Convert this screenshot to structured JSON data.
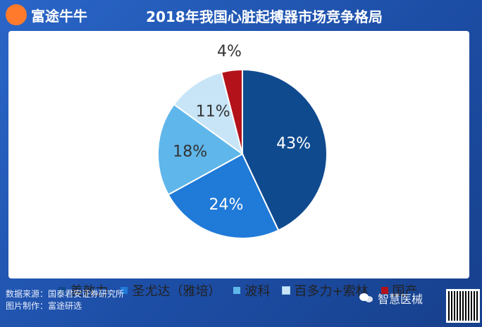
{
  "header": {
    "brand": "富途牛牛",
    "title": "2018年我国心脏起搏器市场竞争格局"
  },
  "colors": {
    "background": "#1f4fa3",
    "brand_orange": "#ff7a2b"
  },
  "chart_data": {
    "type": "pie",
    "title": "2018年我国心脏起搏器市场竞争格局",
    "legend_position": "bottom",
    "slices": [
      {
        "label": "美敦力",
        "value": 43,
        "display": "43%",
        "color": "#0f4a8f"
      },
      {
        "label": "圣尤达（雅培）",
        "value": 24,
        "display": "24%",
        "color": "#1f7ad8"
      },
      {
        "label": "波科",
        "value": 18,
        "display": "18%",
        "color": "#5fb6ea"
      },
      {
        "label": "百多力+索林",
        "value": 11,
        "display": "11%",
        "color": "#c8e5f8"
      },
      {
        "label": "国产",
        "value": 4,
        "display": "4%",
        "color": "#b3121b"
      }
    ]
  },
  "footer": {
    "source": "数据来源：国泰君安证券研究所",
    "made_by": "图片制作：富途研选"
  },
  "watermark": {
    "label": "智慧医械"
  }
}
